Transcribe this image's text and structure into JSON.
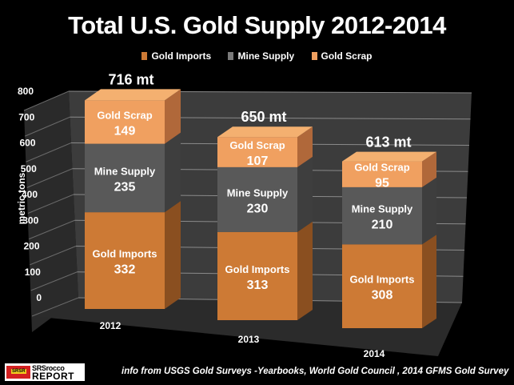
{
  "chart_data": {
    "type": "bar",
    "stacked": true,
    "style": "3d",
    "title": "Total U.S. Gold Supply 2012-2014",
    "xlabel": "",
    "ylabel": "metric tons",
    "ylim": [
      0,
      800
    ],
    "yticks": [
      0,
      100,
      200,
      300,
      400,
      500,
      600,
      700,
      800
    ],
    "grid": true,
    "legend_position": "top",
    "categories": [
      "2012",
      "2013",
      "2014"
    ],
    "series": [
      {
        "name": "Gold Imports",
        "values": [
          332,
          313,
          308
        ],
        "color": "#cd7a35"
      },
      {
        "name": "Mine Supply",
        "values": [
          235,
          230,
          210
        ],
        "color": "#595959"
      },
      {
        "name": "Gold Scrap",
        "values": [
          149,
          107,
          95
        ],
        "color": "#f0a060"
      }
    ],
    "totals": [
      "716 mt",
      "650 mt",
      "613 mt"
    ]
  },
  "footer": {
    "source": "info from USGS Gold Surveys -Yearbooks, World Gold Council , 2014 GFMS Gold Survey",
    "logo_line1": "SRSrocco",
    "logo_line2": "REPORT",
    "logo_badge": "SRSR"
  }
}
